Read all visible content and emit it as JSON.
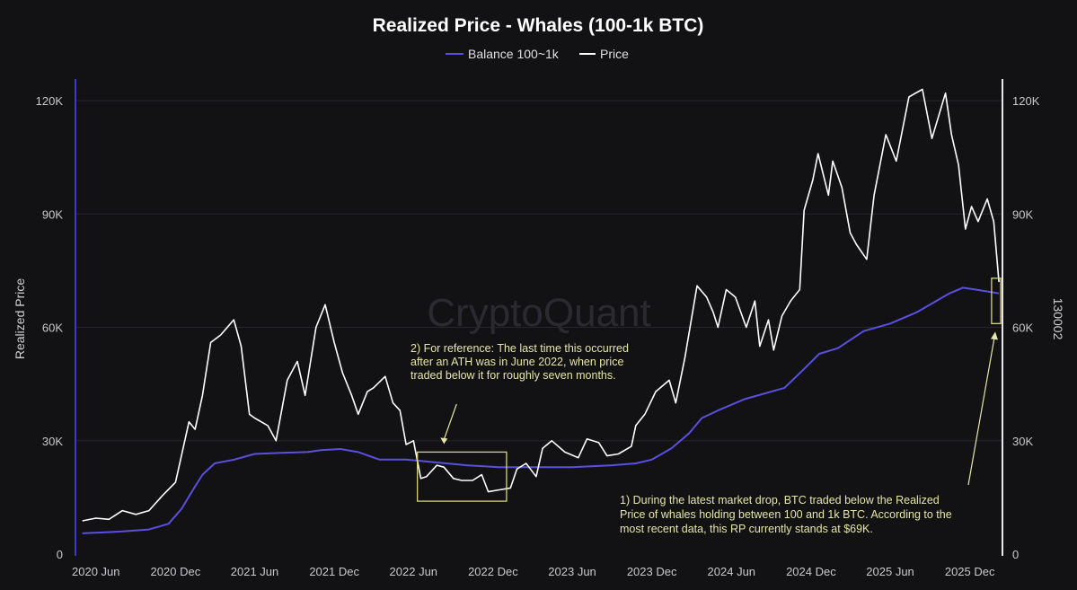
{
  "chart_data": {
    "type": "line",
    "title": "Realized Price - Whales (100-1k BTC)",
    "ylabel": "Realized Price",
    "y2label": "130002",
    "watermark": "CryptoQuant",
    "legend": {
      "placement": "top-center",
      "items": [
        {
          "label": "Balance 100~1k",
          "color": "#5b4fe0"
        },
        {
          "label": "Price",
          "color": "#ffffff"
        }
      ]
    },
    "x_ticks": [
      "2020 Jun",
      "2020 Dec",
      "2021 Jun",
      "2021 Dec",
      "2022 Jun",
      "2022 Dec",
      "2023 Jun",
      "2023 Dec",
      "2024 Jun",
      "2024 Dec",
      "2025 Jun",
      "2025 Dec"
    ],
    "y_ticks": [
      {
        "value": 0,
        "label": "0"
      },
      {
        "value": 30000,
        "label": "30K"
      },
      {
        "value": 60000,
        "label": "60K"
      },
      {
        "value": 90000,
        "label": "90K"
      },
      {
        "value": 120000,
        "label": "120K"
      }
    ],
    "y2_ticks": [
      {
        "value": 0,
        "label": "0"
      },
      {
        "value": 30000,
        "label": "30K"
      },
      {
        "value": 60000,
        "label": "60K"
      },
      {
        "value": 90000,
        "label": "90K"
      },
      {
        "value": 120000,
        "label": "120K"
      }
    ],
    "ylim": [
      0,
      130000
    ],
    "grid": true,
    "series": [
      {
        "name": "Price",
        "color": "#ffffff",
        "x": [
          "2020-05-01",
          "2020-06-01",
          "2020-07-01",
          "2020-08-01",
          "2020-09-01",
          "2020-10-01",
          "2020-11-01",
          "2020-12-01",
          "2021-01-01",
          "2021-01-15",
          "2021-02-01",
          "2021-02-20",
          "2021-03-15",
          "2021-04-14",
          "2021-05-01",
          "2021-05-20",
          "2021-06-01",
          "2021-07-01",
          "2021-07-20",
          "2021-08-15",
          "2021-09-07",
          "2021-09-25",
          "2021-10-20",
          "2021-11-10",
          "2021-12-01",
          "2021-12-20",
          "2022-01-10",
          "2022-01-25",
          "2022-02-15",
          "2022-03-01",
          "2022-03-28",
          "2022-04-15",
          "2022-05-01",
          "2022-05-15",
          "2022-06-01",
          "2022-06-18",
          "2022-07-01",
          "2022-07-25",
          "2022-08-10",
          "2022-09-01",
          "2022-09-20",
          "2022-10-15",
          "2022-11-05",
          "2022-11-20",
          "2022-12-15",
          "2023-01-10",
          "2023-01-25",
          "2023-02-15",
          "2023-03-10",
          "2023-03-25",
          "2023-04-15",
          "2023-05-15",
          "2023-06-15",
          "2023-07-05",
          "2023-08-01",
          "2023-08-20",
          "2023-09-15",
          "2023-10-15",
          "2023-10-25",
          "2023-11-15",
          "2023-12-10",
          "2024-01-10",
          "2024-01-25",
          "2024-02-15",
          "2024-03-14",
          "2024-04-05",
          "2024-04-20",
          "2024-05-01",
          "2024-05-20",
          "2024-06-10",
          "2024-07-05",
          "2024-07-25",
          "2024-08-05",
          "2024-08-25",
          "2024-09-06",
          "2024-09-25",
          "2024-10-15",
          "2024-11-05",
          "2024-11-15",
          "2024-12-05",
          "2024-12-17",
          "2025-01-10",
          "2025-01-20",
          "2025-02-10",
          "2025-03-01",
          "2025-03-15",
          "2025-04-08",
          "2025-04-25",
          "2025-05-22",
          "2025-06-15",
          "2025-07-14",
          "2025-08-14",
          "2025-09-05",
          "2025-10-06",
          "2025-10-20",
          "2025-11-05",
          "2025-11-21",
          "2025-12-05",
          "2025-12-20",
          "2026-01-10",
          "2026-01-25",
          "2026-02-06"
        ],
        "values": [
          8800,
          9500,
          9200,
          11500,
          10500,
          11500,
          15500,
          19000,
          35000,
          33000,
          42000,
          56000,
          58000,
          62000,
          55000,
          37000,
          36000,
          34000,
          30000,
          46000,
          51000,
          42000,
          60000,
          66000,
          56000,
          48000,
          42000,
          37000,
          43000,
          44000,
          47000,
          40000,
          38000,
          29000,
          30000,
          20000,
          20500,
          23500,
          23000,
          20000,
          19500,
          19500,
          21000,
          16500,
          17000,
          17500,
          22500,
          24000,
          20500,
          28000,
          30000,
          27000,
          25500,
          30500,
          29500,
          26000,
          26500,
          28500,
          34000,
          37000,
          43000,
          46000,
          40000,
          52000,
          71000,
          68000,
          64000,
          60000,
          70000,
          68000,
          60000,
          67000,
          55000,
          62000,
          54000,
          63000,
          67000,
          70000,
          91000,
          99000,
          106000,
          95000,
          104000,
          97000,
          85000,
          82000,
          78000,
          95000,
          111000,
          104000,
          121000,
          123000,
          110000,
          122000,
          111000,
          103000,
          86000,
          92000,
          88000,
          94000,
          88000,
          72000
        ]
      },
      {
        "name": "Balance 100~1k",
        "color": "#5b4fe0",
        "x": [
          "2020-05-01",
          "2020-08-01",
          "2020-10-01",
          "2020-11-15",
          "2020-12-15",
          "2021-01-10",
          "2021-02-01",
          "2021-03-01",
          "2021-04-15",
          "2021-06-01",
          "2021-08-01",
          "2021-10-01",
          "2021-11-01",
          "2021-12-15",
          "2022-01-25",
          "2022-03-15",
          "2022-05-15",
          "2022-07-01",
          "2022-10-01",
          "2022-12-15",
          "2023-03-01",
          "2023-06-01",
          "2023-09-01",
          "2023-10-25",
          "2023-12-01",
          "2024-01-15",
          "2024-02-25",
          "2024-03-25",
          "2024-05-01",
          "2024-07-01",
          "2024-10-01",
          "2024-11-15",
          "2024-12-20",
          "2025-02-01",
          "2025-04-01",
          "2025-06-01",
          "2025-08-01",
          "2025-09-15",
          "2025-10-15",
          "2025-11-15",
          "2025-12-15",
          "2026-02-06"
        ],
        "values": [
          5500,
          6000,
          6500,
          8000,
          12000,
          17000,
          21000,
          24000,
          25000,
          26500,
          26800,
          27000,
          27500,
          27800,
          27000,
          25000,
          25000,
          24500,
          23500,
          23000,
          23000,
          23000,
          23500,
          24000,
          25000,
          28000,
          32000,
          36000,
          38000,
          41000,
          44000,
          49000,
          53000,
          54500,
          59000,
          61000,
          64000,
          67000,
          69000,
          70500,
          70000,
          69000
        ]
      }
    ],
    "annotations": [
      {
        "id": "annotation-2",
        "lines": [
          "2) For reference: The last time this occurred",
          "after an ATH was in June 2022, when price",
          "traded below it for roughly seven months."
        ],
        "highlight_x": [
          "2022-06-10",
          "2023-01-01"
        ],
        "highlight_y": [
          14000,
          27000
        ]
      },
      {
        "id": "annotation-1",
        "lines": [
          "1) During the latest market drop, BTC traded below the Realized",
          "Price of whales holding between 100 and 1k BTC. According to the",
          "most recent data, this RP currently stands at $69K."
        ],
        "highlight_x": [
          "2026-01-20",
          "2026-02-10"
        ],
        "highlight_y": [
          61000,
          73000
        ]
      }
    ]
  }
}
